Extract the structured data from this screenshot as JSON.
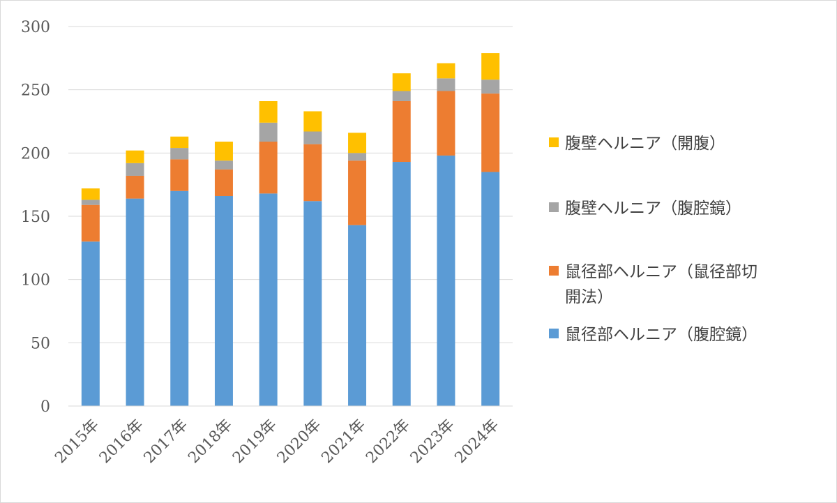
{
  "chart_data": {
    "type": "bar",
    "stacked": true,
    "title": "",
    "xlabel": "",
    "ylabel": "",
    "ylim": [
      0,
      300
    ],
    "yticks": [
      0,
      50,
      100,
      150,
      200,
      250,
      300
    ],
    "ytick_labels": [
      "0",
      "50",
      "100",
      "150",
      "200",
      "250",
      "300"
    ],
    "grid": true,
    "legend_position": "right",
    "categories": [
      "2015年",
      "2016年",
      "2017年",
      "2018年",
      "2019年",
      "2020年",
      "2021年",
      "2022年",
      "2023年",
      "2024年"
    ],
    "series": [
      {
        "name": "鼠径部ヘルニア（腹腔鏡）",
        "color": "#5b9bd5",
        "values": [
          130,
          164,
          170,
          166,
          168,
          162,
          143,
          193,
          198,
          185
        ]
      },
      {
        "name": "鼠径部ヘルニア（鼠径部切開法）",
        "color": "#ed7d31",
        "values": [
          29,
          18,
          25,
          21,
          41,
          45,
          51,
          48,
          51,
          62
        ]
      },
      {
        "name": "腹壁ヘルニア（腹腔鏡）",
        "color": "#a5a5a5",
        "values": [
          4,
          10,
          9,
          7,
          15,
          10,
          6,
          8,
          10,
          11
        ]
      },
      {
        "name": "腹壁ヘルニア（開腹）",
        "color": "#ffc000",
        "values": [
          9,
          10,
          9,
          15,
          17,
          16,
          16,
          14,
          12,
          21
        ]
      }
    ],
    "legend": [
      {
        "lines": [
          "腹壁ヘルニア（開腹）"
        ],
        "series_index": 3
      },
      {
        "lines": [
          "腹壁ヘルニア（腹腔鏡）"
        ],
        "series_index": 2
      },
      {
        "lines": [
          "鼠径部ヘルニア（鼠径部切",
          "開法）"
        ],
        "series_index": 1
      },
      {
        "lines": [
          "鼠径部ヘルニア（腹腔鏡）"
        ],
        "series_index": 0
      }
    ]
  }
}
